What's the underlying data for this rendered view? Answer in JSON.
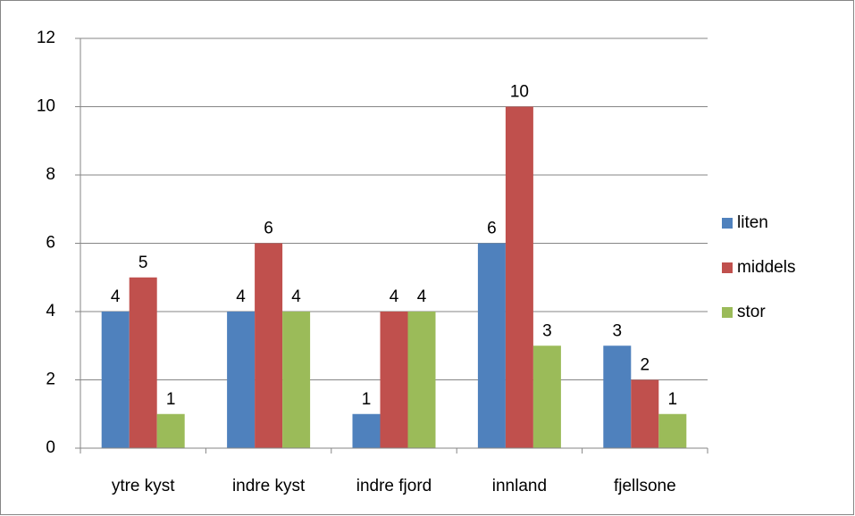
{
  "chart_data": {
    "type": "bar",
    "categories": [
      "ytre kyst",
      "indre kyst",
      "indre fjord",
      "innland",
      "fjellsone"
    ],
    "series": [
      {
        "name": "liten",
        "color": "#4f81bd",
        "values": [
          4,
          4,
          1,
          6,
          3
        ]
      },
      {
        "name": "middels",
        "color": "#c0504d",
        "values": [
          5,
          6,
          4,
          10,
          2
        ]
      },
      {
        "name": "stor",
        "color": "#9bbb59",
        "values": [
          1,
          4,
          4,
          3,
          1
        ]
      }
    ],
    "ylim": [
      0,
      12
    ],
    "yticks": [
      0,
      2,
      4,
      6,
      8,
      10,
      12
    ],
    "grid": true,
    "legend": "right"
  }
}
